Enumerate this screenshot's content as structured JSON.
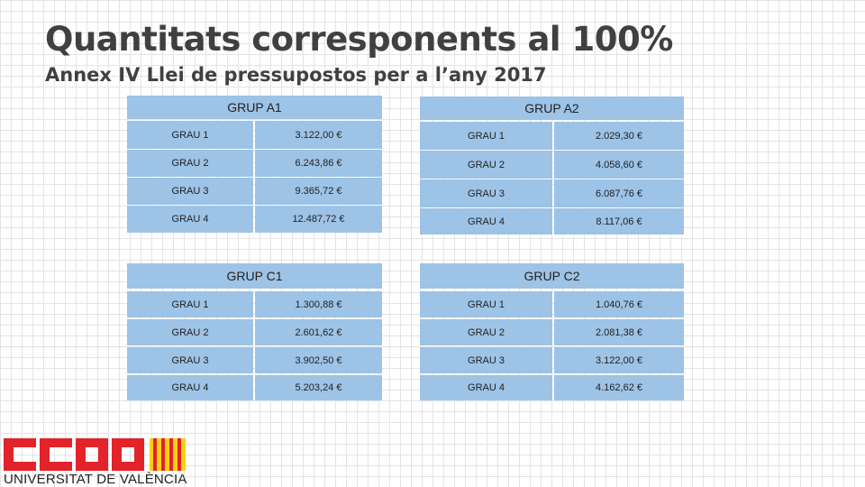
{
  "title": "Quantitats corresponents al 100%",
  "subtitle": "Annex IV Llei de pressupostos per a l’any 2017",
  "tables": [
    {
      "name": "GRUP A1",
      "rows": [
        [
          "GRAU 1",
          "3.122,00 €"
        ],
        [
          "GRAU 2",
          "6.243,86 €"
        ],
        [
          "GRAU 3",
          "9.365,72 €"
        ],
        [
          "GRAU 4",
          "12.487,72 €"
        ]
      ]
    },
    {
      "name": "GRUP A2",
      "rows": [
        [
          "GRAU 1",
          "2.029,30 €"
        ],
        [
          "GRAU 2",
          "4.058,60 €"
        ],
        [
          "GRAU 3",
          "6.087,76 €"
        ],
        [
          "GRAU 4",
          "8.117,06 €"
        ]
      ]
    },
    {
      "name": "GRUP C1",
      "rows": [
        [
          "GRAU 1",
          "1.300,88 €"
        ],
        [
          "GRAU 2",
          "2.601,62 €"
        ],
        [
          "GRAU 3",
          "3.902,50 €"
        ],
        [
          "GRAU 4",
          "5.203,24 €"
        ]
      ]
    },
    {
      "name": "GRUP C2",
      "rows": [
        [
          "GRAU 1",
          "1.040,76 €"
        ],
        [
          "GRAU 2",
          "2.081,38 €"
        ],
        [
          "GRAU 3",
          "3.122,00 €"
        ],
        [
          "GRAU 4",
          "4.162,62 €"
        ]
      ]
    }
  ],
  "logo": {
    "brand": "CCOO",
    "text": "UNIVERSITAT DE VALÈNCIA"
  },
  "colors": {
    "cell": "#9dc3e6",
    "logo_red": "#e3232a",
    "logo_yellow": "#f7d116"
  }
}
